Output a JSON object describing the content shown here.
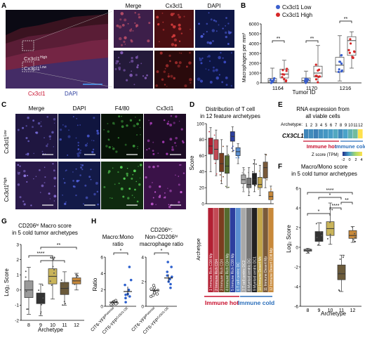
{
  "figure": {
    "panels": {
      "A": {
        "letter": "A",
        "legend_cx3cl1": "Cx3cl1",
        "legend_dapi": "DAPI",
        "col_headers": [
          "Merge",
          "Cx3cl1",
          "DAPI"
        ],
        "row_labels": [
          "Cx3cl1",
          "Cx3cl1"
        ],
        "row_superscripts": [
          "High",
          "Low"
        ]
      },
      "B": {
        "letter": "B",
        "legend": [
          "Cx3cl1 Low",
          "Cx3cl1 High"
        ],
        "ylabel": "Macrophages per mm²",
        "xlabel": "Tumor ID",
        "sig": [
          "**",
          "**",
          "**"
        ]
      },
      "C": {
        "letter": "C",
        "col_headers": [
          "Merge",
          "DAPI",
          "F4/80",
          "Cx3cl1"
        ],
        "row_labels": [
          "Cx3cl1",
          "Cx3cl1"
        ],
        "row_superscripts": [
          "Low",
          "High"
        ]
      },
      "D": {
        "letter": "D",
        "title_lines": [
          "Distribution of T cell",
          "in 12 feature archetypes"
        ],
        "ylabel": "Score",
        "archetype_label": "Archetype",
        "archetypes": [
          "1 Immune Rich CD8 Mp",
          "2 Immune Rich CD4",
          "3 Immune Rich CD4",
          "4 Immune Rich CD4 Mp",
          "5 Immune Rich CD8 Mp",
          "6 T cell centric DC",
          "7 T cell centric DC2",
          "8 Myeloid centric DC",
          "9 Myeloid centric DC1",
          "10 Immune Desert Mc",
          "11 Immune Desert Mp",
          "12 Immune Desert CD8 Mp"
        ],
        "group_hot": "Immune hot",
        "group_cold": "Immune cold"
      },
      "E": {
        "letter": "E",
        "title_lines": [
          "RNA expression from",
          "all viable cells"
        ],
        "archetype_label": "Archetype:",
        "archetype_numbers": [
          "1",
          "2",
          "3",
          "4",
          "5",
          "6",
          "7",
          "8",
          "9",
          "10",
          "11",
          "12"
        ],
        "gene": "CX3CL1",
        "group_hot": "Immune hot",
        "group_cold": "Immune cold",
        "colorbar_label": "Z score (TPM)",
        "colorbar_ticks": [
          "-2",
          "0",
          "2",
          "4"
        ]
      },
      "F": {
        "letter": "F",
        "title_lines": [
          "Macro/Mono score",
          "in 5 cold tumor archetypes"
        ],
        "ylabel": "Log₂ Score",
        "xlabel": "Archetype",
        "sig": [
          "****",
          "*",
          "****",
          "**",
          "*"
        ]
      },
      "G": {
        "letter": "G",
        "title_lines": [
          "CD206ʰⁱ Macro score",
          "in 5 cold tumor archetypes"
        ],
        "ylabel": "Log₂ Score",
        "xlabel": "Archetype",
        "sig": [
          "**",
          "****",
          "***"
        ]
      },
      "H": {
        "letter": "H",
        "title1_lines": [
          "Macro:Mono",
          "ratio"
        ],
        "title2_lines": [
          "CD206ʰⁱ:",
          "Non-CD206ʰⁱ",
          "macrophage ratio"
        ],
        "ylabel": "Ratio",
        "groups": [
          "CIT6-YFP",
          "CIT6-YFP"
        ],
        "group_superscripts": [
          "Parental",
          "Cx3cl1-OE"
        ],
        "sig": [
          "*",
          "*"
        ]
      }
    },
    "colors": {
      "low_blue": "#3a5fcd",
      "high_red": "#d62728",
      "hot_red": "#c8102e",
      "cold_blue": "#2c6fbb"
    }
  },
  "chart_data": [
    {
      "panel": "B",
      "type": "box",
      "categories": [
        "1164",
        "1170",
        "1216"
      ],
      "xlabel": "Tumor ID",
      "ylabel": "Macrophages per mm²",
      "ylim": [
        0,
        6000
      ],
      "yticks": [
        0,
        1000,
        2000,
        3000,
        4000,
        5000,
        6000
      ],
      "series": [
        {
          "name": "Cx3cl1 Low",
          "boxes": [
            [
              0,
              50,
              200,
              450,
              1500
            ],
            [
              0,
              80,
              250,
              500,
              1200
            ],
            [
              200,
              1100,
              1800,
              2600,
              4800
            ]
          ]
        },
        {
          "name": "Cx3cl1 High",
          "boxes": [
            [
              0,
              500,
              900,
              1400,
              2300
            ],
            [
              0,
              600,
              1000,
              1700,
              3800
            ],
            [
              1500,
              2800,
              4300,
              4700,
              5200
            ]
          ]
        }
      ]
    },
    {
      "panel": "D",
      "type": "box",
      "categories": [
        "1",
        "2",
        "3",
        "4",
        "5",
        "6",
        "7",
        "8",
        "9",
        "10",
        "11",
        "12"
      ],
      "ylabel": "Score",
      "ylim": [
        0,
        100
      ],
      "yticks": [
        0,
        20,
        40,
        60,
        80,
        100
      ],
      "boxes": [
        [
          40,
          62,
          72,
          82,
          95
        ],
        [
          35,
          55,
          68,
          80,
          92
        ],
        [
          25,
          40,
          50,
          63,
          80
        ],
        [
          20,
          38,
          47,
          60,
          72
        ],
        [
          65,
          78,
          84,
          90,
          96
        ],
        [
          50,
          60,
          65,
          70,
          75
        ],
        [
          15,
          25,
          30,
          36,
          45
        ],
        [
          10,
          20,
          24,
          32,
          45
        ],
        [
          15,
          24,
          30,
          38,
          55
        ],
        [
          10,
          20,
          24,
          33,
          48
        ],
        [
          20,
          32,
          45,
          52,
          62
        ],
        [
          0,
          5,
          9,
          15,
          22
        ]
      ],
      "colors": [
        "#b22033",
        "#c24a55",
        "#7b3d1f",
        "#556b2f",
        "#2d3f9e",
        "#5b8fd1",
        "#a9a9a9",
        "#777777",
        "#222222",
        "#c2a54a",
        "#7a5a3a",
        "#c8893a"
      ]
    },
    {
      "panel": "E",
      "type": "heatmap",
      "x": [
        "1",
        "2",
        "3",
        "4",
        "5",
        "6",
        "7",
        "8",
        "9",
        "10",
        "11",
        "12"
      ],
      "y": [
        "CX3CL1"
      ],
      "values": [
        [
          -0.5,
          -0.4,
          -0.6,
          -0.3,
          -0.2,
          -0.1,
          0.2,
          -0.4,
          0.0,
          0.5,
          0.9,
          4.0
        ]
      ],
      "zlim": [
        -2,
        4
      ]
    },
    {
      "panel": "F",
      "type": "box",
      "categories": [
        "8",
        "9",
        "10",
        "11",
        "12"
      ],
      "xlabel": "Archetype",
      "ylabel": "Log₂ Score",
      "ylim": [
        -6,
        6
      ],
      "yticks": [
        -6,
        -4,
        -2,
        0,
        2,
        4,
        6
      ],
      "boxes": [
        [
          -0.6,
          -0.4,
          -0.3,
          -0.2,
          -0.1
        ],
        [
          0.2,
          0.6,
          1.0,
          1.6,
          2.5
        ],
        [
          0.3,
          1.2,
          1.9,
          2.6,
          4.5
        ],
        [
          -4.5,
          -3.3,
          -2.7,
          -1.8,
          -0.8
        ],
        [
          0.5,
          0.9,
          1.2,
          1.7,
          2.1
        ]
      ],
      "colors": [
        "#9a9a9a",
        "#333333",
        "#c9b45a",
        "#6b5a3a",
        "#c8893a"
      ]
    },
    {
      "panel": "G",
      "type": "box",
      "categories": [
        "8",
        "9",
        "10",
        "11",
        "12"
      ],
      "xlabel": "Archetype",
      "ylabel": "Log₂ Score",
      "ylim": [
        -2,
        3
      ],
      "yticks": [
        -2,
        -1,
        0,
        1,
        2,
        3
      ],
      "boxes": [
        [
          -1.6,
          -0.5,
          0.0,
          0.6,
          1.5
        ],
        [
          -1.7,
          -0.9,
          -0.6,
          -0.2,
          0.4
        ],
        [
          -0.6,
          0.4,
          0.9,
          1.4,
          2.1
        ],
        [
          -1.0,
          -0.3,
          0.1,
          0.5,
          1.2
        ],
        [
          0.0,
          0.4,
          0.6,
          0.8,
          1.1
        ]
      ],
      "colors": [
        "#9a9a9a",
        "#333333",
        "#c9b45a",
        "#6b5a3a",
        "#c8893a"
      ]
    },
    {
      "panel": "H",
      "type": "scatter",
      "subplots": [
        {
          "ylim": [
            0,
            6
          ],
          "yticks": [
            0,
            2,
            4,
            6
          ],
          "groups": [
            {
              "mean": 0.5,
              "sem": 0.15,
              "points": [
                0.2,
                0.3,
                0.4,
                0.5,
                0.6,
                0.7,
                0.5,
                0.4,
                0.3
              ]
            },
            {
              "mean": 1.8,
              "sem": 0.6,
              "points": [
                0.5,
                1.0,
                1.2,
                1.5,
                2.0,
                2.6,
                3.2,
                4.8,
                1.4
              ]
            }
          ]
        },
        {
          "ylim": [
            0,
            4
          ],
          "yticks": [
            0,
            2,
            4
          ],
          "groups": [
            {
              "mean": 1.3,
              "sem": 0.15,
              "points": [
                0.8,
                1.0,
                1.2,
                1.4,
                1.5,
                1.7,
                1.1,
                1.3,
                0.9
              ]
            },
            {
              "mean": 2.3,
              "sem": 0.3,
              "points": [
                1.5,
                1.8,
                2.2,
                2.5,
                2.8,
                3.2,
                2.0,
                2.4,
                3.6
              ]
            }
          ]
        }
      ]
    }
  ]
}
